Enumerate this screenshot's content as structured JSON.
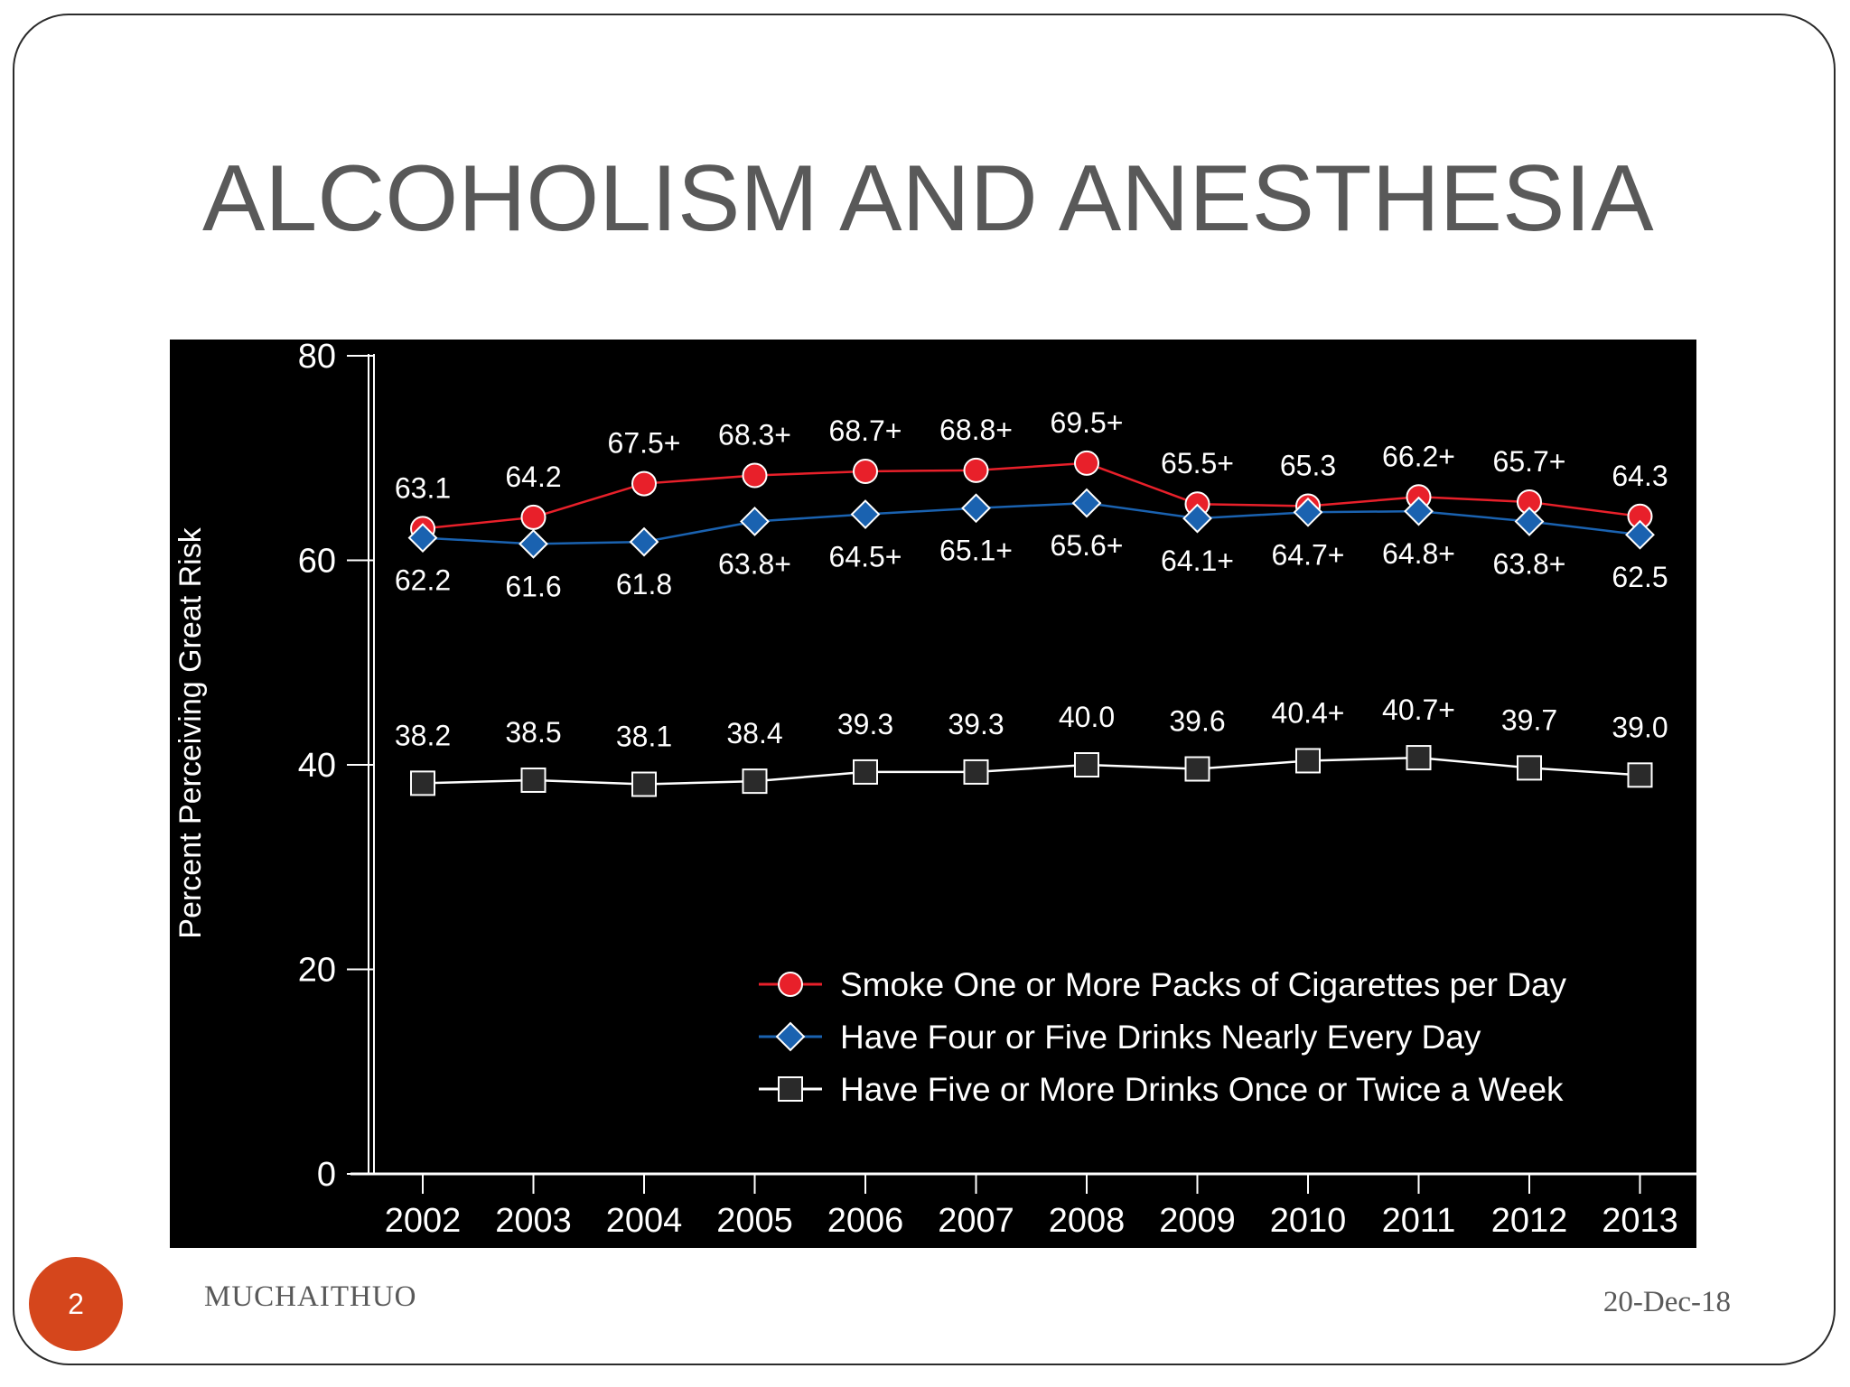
{
  "slide": {
    "title": "ALCOHOLISM AND ANESTHESIA",
    "page_number": "2",
    "author": "MUCHAITHUO",
    "date": "20-Dec-18",
    "accent_color": "#d5461c"
  },
  "chart_data": {
    "type": "line",
    "title": "",
    "xlabel": "",
    "ylabel": "Percent Perceiving Great Risk",
    "ylim": [
      0,
      80
    ],
    "yticks": [
      "0",
      "20",
      "40",
      "60",
      "80"
    ],
    "categories": [
      "2002",
      "2003",
      "2004",
      "2005",
      "2006",
      "2007",
      "2008",
      "2009",
      "2010",
      "2011",
      "2012",
      "2013"
    ],
    "grid": false,
    "legend_position": "bottom-right",
    "series": [
      {
        "name": "Smoke One or More Packs of Cigarettes per Day",
        "marker": "circle",
        "color": "#e8202a",
        "values": [
          63.1,
          64.2,
          67.5,
          68.3,
          68.7,
          68.8,
          69.5,
          65.5,
          65.3,
          66.2,
          65.7,
          64.3
        ],
        "labels": [
          "63.1",
          "64.2",
          "67.5+",
          "68.3+",
          "68.7+",
          "68.8+",
          "69.5+",
          "65.5+",
          "65.3",
          "66.2+",
          "65.7+",
          "64.3"
        ],
        "label_side": "above"
      },
      {
        "name": "Have Four or Five Drinks Nearly Every Day",
        "marker": "diamond",
        "color": "#1a62b0",
        "values": [
          62.2,
          61.6,
          61.8,
          63.8,
          64.5,
          65.1,
          65.6,
          64.1,
          64.7,
          64.8,
          63.8,
          62.5
        ],
        "labels": [
          "62.2",
          "61.6",
          "61.8",
          "63.8+",
          "64.5+",
          "65.1+",
          "65.6+",
          "64.1+",
          "64.7+",
          "64.8+",
          "63.8+",
          "62.5"
        ],
        "label_side": "below"
      },
      {
        "name": "Have Five or More Drinks Once or Twice a Week",
        "marker": "square",
        "color": "#2a2a2a",
        "values": [
          38.2,
          38.5,
          38.1,
          38.4,
          39.3,
          39.3,
          40.0,
          39.6,
          40.4,
          40.7,
          39.7,
          39.0
        ],
        "labels": [
          "38.2",
          "38.5",
          "38.1",
          "38.4",
          "39.3",
          "39.3",
          "40.0",
          "39.6",
          "40.4+",
          "40.7+",
          "39.7",
          "39.0"
        ],
        "label_side": "above"
      }
    ]
  }
}
